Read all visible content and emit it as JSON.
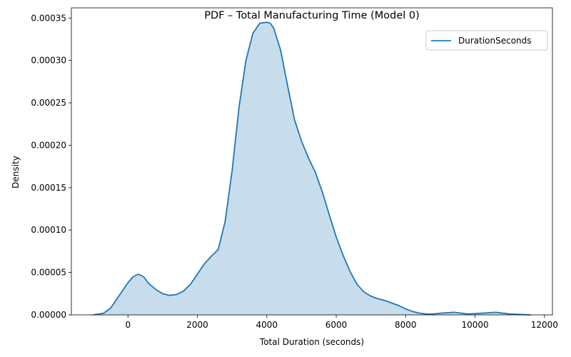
{
  "chart_data": {
    "type": "area",
    "title": "PDF – Total Manufacturing Time (Model 0)",
    "xlabel": "Total Duration (seconds)",
    "ylabel": "Density",
    "xlim": [
      -1630,
      12230
    ],
    "ylim": [
      0,
      0.000362
    ],
    "x_ticks": [
      0,
      2000,
      4000,
      6000,
      8000,
      10000,
      12000
    ],
    "x_tick_labels": [
      "0",
      "2000",
      "4000",
      "6000",
      "8000",
      "10000",
      "12000"
    ],
    "y_ticks": [
      0,
      5e-05,
      0.0001,
      0.00015,
      0.0002,
      0.00025,
      0.0003,
      0.00035
    ],
    "y_tick_labels": [
      "0.00000",
      "0.00005",
      "0.00010",
      "0.00015",
      "0.00020",
      "0.00025",
      "0.00030",
      "0.00035"
    ],
    "grid": false,
    "legend_position": "top-right",
    "colors": {
      "line": "#1f77b4",
      "fill": "#1f77b4",
      "fill_opacity": 0.25
    },
    "series": [
      {
        "name": "DurationSeconds",
        "x": [
          -1000,
          -700,
          -500,
          -300,
          0,
          150,
          300,
          450,
          600,
          800,
          1000,
          1200,
          1400,
          1600,
          1800,
          2000,
          2200,
          2400,
          2600,
          2800,
          3000,
          3200,
          3400,
          3600,
          3800,
          4000,
          4100,
          4200,
          4400,
          4600,
          4800,
          5000,
          5200,
          5400,
          5600,
          5800,
          6000,
          6200,
          6400,
          6600,
          6800,
          7000,
          7200,
          7400,
          7600,
          7800,
          8000,
          8200,
          8400,
          8600,
          8800,
          9000,
          9400,
          9800,
          10200,
          10600,
          11000,
          11600
        ],
        "y": [
          0.0,
          2e-06,
          8e-06,
          2e-05,
          3.8e-05,
          4.5e-05,
          4.8e-05,
          4.5e-05,
          3.7e-05,
          3e-05,
          2.5e-05,
          2.3e-05,
          2.4e-05,
          2.8e-05,
          3.6e-05,
          4.8e-05,
          6e-05,
          6.9e-05,
          7.7e-05,
          0.00011,
          0.00017,
          0.000245,
          0.0003,
          0.000332,
          0.000344,
          0.000345,
          0.000344,
          0.000338,
          0.000312,
          0.00027,
          0.00023,
          0.000205,
          0.000185,
          0.000168,
          0.000145,
          0.000118,
          9.2e-05,
          7e-05,
          5.1e-05,
          3.6e-05,
          2.7e-05,
          2.2e-05,
          1.9e-05,
          1.7e-05,
          1.4e-05,
          1.1e-05,
          7e-06,
          4e-06,
          2e-06,
          1e-06,
          1e-06,
          2e-06,
          3e-06,
          1e-06,
          2e-06,
          3e-06,
          1e-06,
          0.0
        ]
      }
    ]
  }
}
